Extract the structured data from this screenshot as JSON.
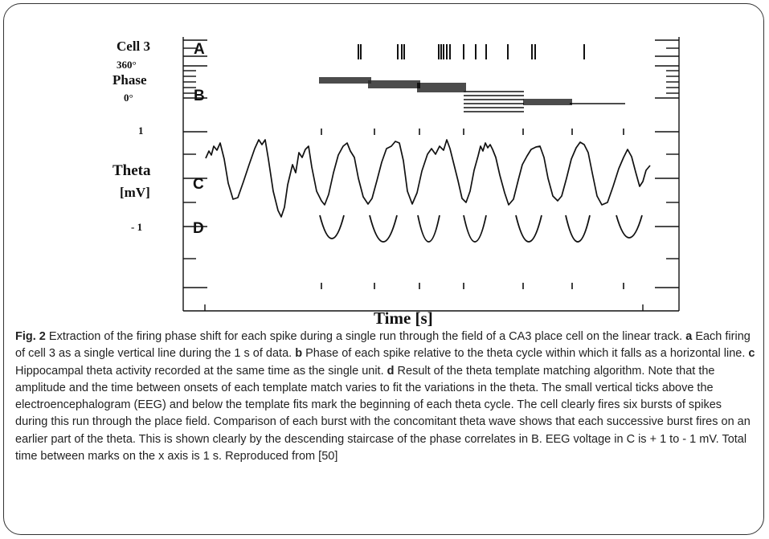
{
  "figure": {
    "ylabels": {
      "cell": "Cell 3",
      "phase_top": "360°",
      "phase": "Phase",
      "phase_bottom": "0°",
      "volt_top": "1",
      "theta": "Theta",
      "theta_unit": "[mV]",
      "volt_bottom": "- 1"
    },
    "panel_letters": [
      "A",
      "B",
      "C",
      "D"
    ],
    "xlabel": "Time [s]"
  },
  "caption": {
    "label": "Fig. 2",
    "parts": [
      {
        "t": " Extraction of the firing phase shift for each spike during a single run through the field of a CA3 place cell on the linear track. "
      },
      {
        "b": "a"
      },
      {
        "t": " Each firing of cell 3 as a single vertical line during the 1 s of data. "
      },
      {
        "b": "b"
      },
      {
        "t": " Phase of each spike relative to the theta cycle within which it falls as a horizontal line. "
      },
      {
        "b": "c"
      },
      {
        "t": " Hippocampal theta activity recorded at the same time as the single unit. "
      },
      {
        "b": "d"
      },
      {
        "t": " Result of the theta template matching algorithm. Note that the amplitude and the time between onsets of each template match varies to fit the variations in the theta. The small vertical ticks above the electroencephalogram (EEG) and below the template fits mark the beginning of each theta cycle. The cell clearly fires six bursts of spikes during this run through the place field. Comparison of each burst with the concomitant theta wave shows that each successive burst fires on an earlier part of the theta. This is shown clearly by the descending staircase of the phase correlates in B. EEG voltage in C is + 1 to - 1 mV. Total time between marks on the x axis is 1 s. Reproduced from [50]"
      }
    ]
  }
}
